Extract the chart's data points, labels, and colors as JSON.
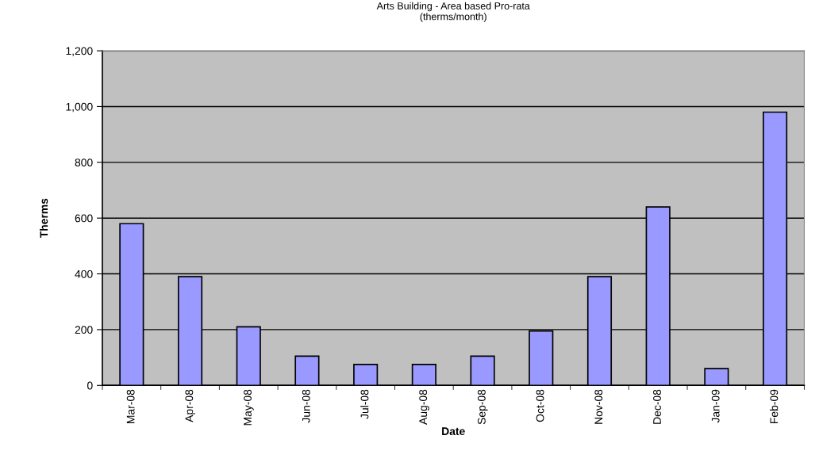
{
  "chart_data": {
    "type": "bar",
    "title": "Arts Building - Area based Pro-rata\n(therms/month)",
    "xlabel": "Date",
    "ylabel": "Therms",
    "categories": [
      "Mar-08",
      "Apr-08",
      "May-08",
      "Jun-08",
      "Jul-08",
      "Aug-08",
      "Sep-08",
      "Oct-08",
      "Nov-08",
      "Dec-08",
      "Jan-09",
      "Feb-09"
    ],
    "values": [
      580,
      390,
      210,
      105,
      75,
      75,
      105,
      195,
      390,
      640,
      60,
      980
    ],
    "color": "#9999ff",
    "ylim": [
      0,
      1200
    ],
    "yticks": [
      0,
      {
        "value": 200,
        "label": "200"
      },
      {
        "value": 400,
        "label": "400"
      },
      {
        "value": 600,
        "label": "600"
      },
      {
        "value": 800,
        "label": "800"
      },
      {
        "value": 1000,
        "label": "1,000"
      },
      {
        "value": 1200,
        "label": "1,200"
      }
    ],
    "grid": "y",
    "legend": false
  }
}
